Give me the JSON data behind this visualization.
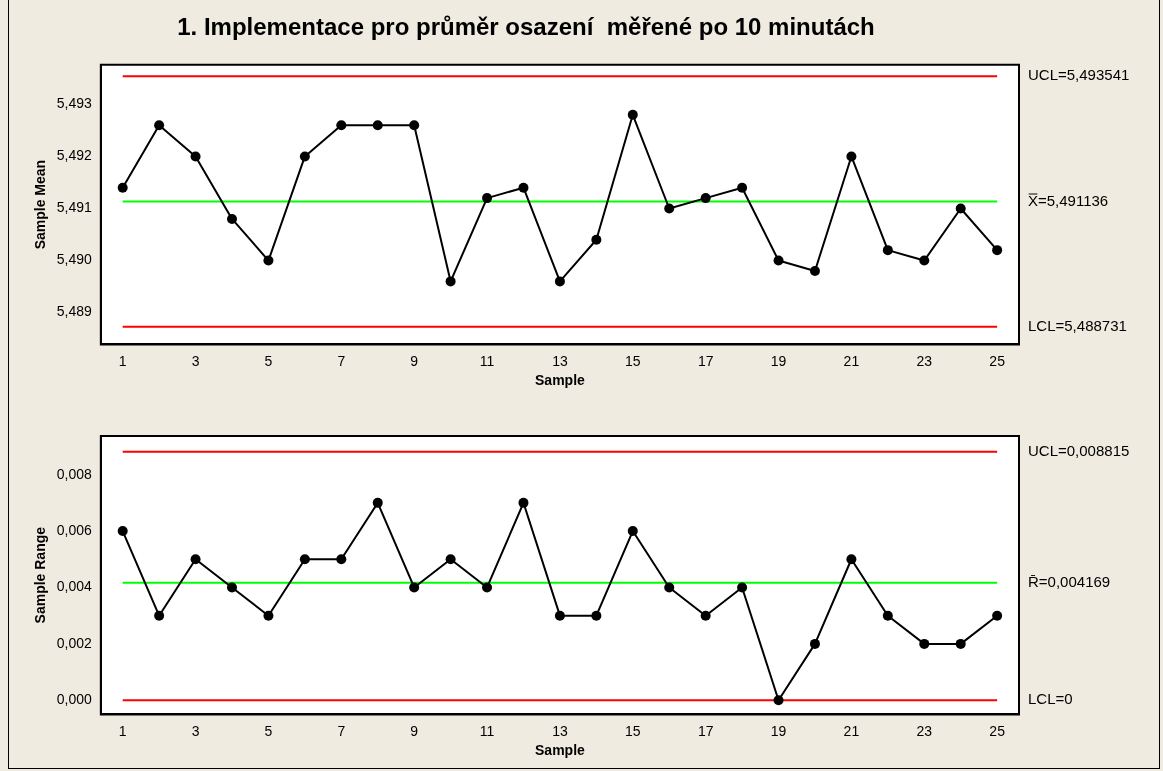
{
  "chart_data": [
    {
      "type": "line",
      "title": "1. Implementace pro průměr osazení  měřené po 10 minutách",
      "xlabel": "Sample",
      "ylabel": "Sample Mean",
      "marker": "circle",
      "x": [
        1,
        2,
        3,
        4,
        5,
        6,
        7,
        8,
        9,
        10,
        11,
        12,
        13,
        14,
        15,
        16,
        17,
        18,
        19,
        20,
        21,
        22,
        23,
        24,
        25
      ],
      "series": [
        {
          "color": "#000000",
          "values": [
            5.4914,
            5.4926,
            5.492,
            5.4908,
            5.49,
            5.492,
            5.4926,
            5.4926,
            5.4926,
            5.4896,
            5.4912,
            5.4914,
            5.4896,
            5.4904,
            5.4928,
            5.491,
            5.4912,
            5.4914,
            5.49,
            5.4898,
            5.492,
            5.4902,
            5.49,
            5.491,
            5.4902
          ]
        }
      ],
      "xlim": [
        0.4,
        25.6
      ],
      "xticks": [
        1,
        3,
        5,
        7,
        9,
        11,
        13,
        15,
        17,
        19,
        21,
        23,
        25
      ],
      "ylim": [
        5.48839,
        5.49376
      ],
      "yticks": [
        {
          "value": 5.489,
          "label": "5,489"
        },
        {
          "value": 5.49,
          "label": "5,490"
        },
        {
          "value": 5.491,
          "label": "5,491"
        },
        {
          "value": 5.492,
          "label": "5,492"
        },
        {
          "value": 5.493,
          "label": "5,493"
        }
      ],
      "ref_lines": [
        {
          "axis": "y",
          "value": 5.493541,
          "label": "UCL=5,493541",
          "color": "#ff0000"
        },
        {
          "axis": "y",
          "value": 5.491136,
          "label": "X̿=5,491136",
          "color": "#00ff00"
        },
        {
          "axis": "y",
          "value": 5.488731,
          "label": "LCL=5,488731",
          "color": "#ff0000"
        }
      ]
    },
    {
      "type": "line",
      "xlabel": "Sample",
      "ylabel": "Sample Range",
      "marker": "circle",
      "x": [
        1,
        2,
        3,
        4,
        5,
        6,
        7,
        8,
        9,
        10,
        11,
        12,
        13,
        14,
        15,
        16,
        17,
        18,
        19,
        20,
        21,
        22,
        23,
        24,
        25
      ],
      "series": [
        {
          "color": "#000000",
          "values": [
            0.006,
            0.003,
            0.005,
            0.004,
            0.003,
            0.005,
            0.005,
            0.007,
            0.004,
            0.005,
            0.004,
            0.007,
            0.003,
            0.003,
            0.006,
            0.004,
            0.003,
            0.004,
            0,
            0.002,
            0.005,
            0.003,
            0.002,
            0.002,
            0.003
          ]
        }
      ],
      "xlim": [
        0.4,
        25.6
      ],
      "xticks": [
        1,
        3,
        5,
        7,
        9,
        11,
        13,
        15,
        17,
        19,
        21,
        23,
        25
      ],
      "ylim": [
        -0.0005,
        0.00937
      ],
      "yticks": [
        {
          "value": 0,
          "label": "0,000"
        },
        {
          "value": 0.002,
          "label": "0,002"
        },
        {
          "value": 0.004,
          "label": "0,004"
        },
        {
          "value": 0.006,
          "label": "0,006"
        },
        {
          "value": 0.008,
          "label": "0,008"
        }
      ],
      "ref_lines": [
        {
          "axis": "y",
          "value": 0.008815,
          "label": "UCL=0,008815",
          "color": "#ff0000"
        },
        {
          "axis": "y",
          "value": 0.004169,
          "label": "R̄=0,004169",
          "color": "#00ff00"
        },
        {
          "axis": "y",
          "value": 0,
          "label": "LCL=0",
          "color": "#ff0000"
        }
      ]
    }
  ]
}
